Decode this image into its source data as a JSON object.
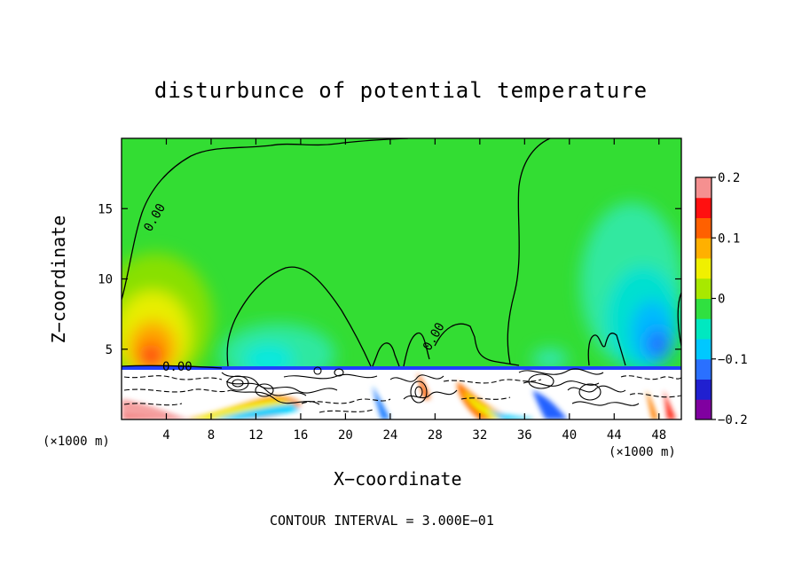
{
  "colors": {
    "background": "#ffffff",
    "axis": "#000000",
    "colorbar_stops": [
      "#8000a0",
      "#2020d0",
      "#2a70ff",
      "#00c8ff",
      "#00e8c0",
      "#30e040",
      "#a8e800",
      "#f0f000",
      "#ffb000",
      "#ff6000",
      "#ff1010",
      "#f59090"
    ]
  },
  "chart_data": {
    "type": "heatmap",
    "title": "disturbunce of potential temperature",
    "xlabel": "X−coordinate",
    "ylabel": "Z−coordinate",
    "x_unit_label_left": "(×1000 m)",
    "x_unit_label_right": "(×1000 m)",
    "xlim": [
      0,
      50
    ],
    "ylim": [
      0,
      20
    ],
    "x_ticks": [
      4,
      8,
      12,
      16,
      20,
      24,
      28,
      32,
      36,
      40,
      44,
      48
    ],
    "x_tick_labels": [
      "4",
      "8",
      "12",
      "16",
      "20",
      "24",
      "28",
      "32",
      "36",
      "40",
      "44",
      "48"
    ],
    "y_ticks": [
      5,
      10,
      15
    ],
    "y_tick_labels": [
      "5",
      "10",
      "15"
    ],
    "colorbar": {
      "range": [
        -0.2,
        0.2
      ],
      "ticks": [
        0.2,
        0.1,
        0,
        -0.1,
        -0.2
      ],
      "tick_labels": [
        "0.2",
        "0.1",
        "0",
        "−0.1",
        "−0.2"
      ]
    },
    "contour_label": "0.00",
    "contour_interval_text": "CONTOUR INTERVAL = 3.000E−01",
    "features": [
      {
        "name": "background",
        "x": [
          0,
          50
        ],
        "z": [
          4,
          20
        ],
        "value": 0.0
      },
      {
        "name": "warm-lobe-left",
        "x": [
          0,
          8
        ],
        "z": [
          3.5,
          11
        ],
        "peak": 0.15,
        "peak_at": [
          3,
          4.5
        ]
      },
      {
        "name": "cool-lobe-right",
        "x": [
          41,
          50
        ],
        "z": [
          3.5,
          15
        ],
        "peak": -0.12,
        "peak_at": [
          47,
          5
        ]
      },
      {
        "name": "cool-dome-center",
        "x": [
          9,
          22
        ],
        "z": [
          3.5,
          9
        ],
        "peak": -0.04,
        "peak_at": [
          14,
          4
        ]
      },
      {
        "name": "surface-layer",
        "x": [
          0,
          50
        ],
        "z": [
          0,
          3.8
        ],
        "note": "strong mixed disturbances"
      }
    ]
  }
}
